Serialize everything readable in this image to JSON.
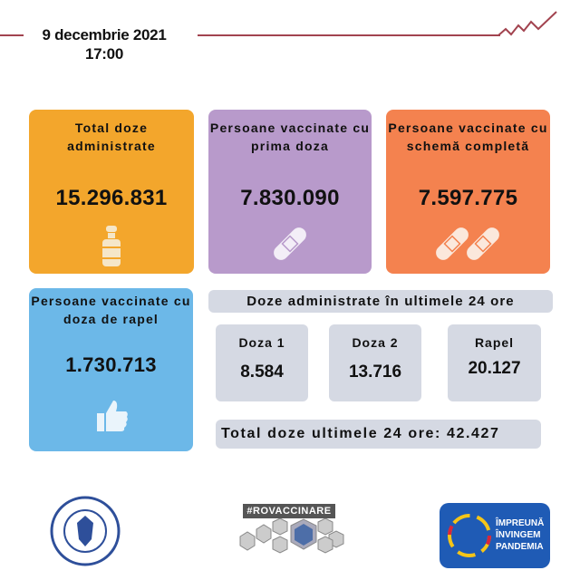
{
  "header": {
    "date": "9 decembrie 2021",
    "time": "17:00"
  },
  "colors": {
    "orange": "#f3a62c",
    "purple": "#b89acb",
    "coral": "#f4824f",
    "blue": "#6cb8e8",
    "grey": "#d5d9e3",
    "line": "#a2434f"
  },
  "cards": [
    {
      "title": "Total doze administrate",
      "value": "15.296.831",
      "icon": "vial-icon"
    },
    {
      "title": "Persoane vaccinate cu prima doza",
      "value": "7.830.090",
      "icon": "bandage-icon"
    },
    {
      "title": "Persoane vaccinate cu schemă completă",
      "value": "7.597.775",
      "icon": "two-bandages-icon"
    },
    {
      "title": "Persoane  vaccinate cu doza de rapel",
      "value": "1.730.713",
      "icon": "thumbs-up-icon"
    }
  ],
  "last24": {
    "title": "Doze administrate în ultimele 24 ore",
    "items": [
      {
        "label": "Doza 1",
        "value": "8.584"
      },
      {
        "label": "Doza 2",
        "value": "13.716"
      },
      {
        "label": "Rapel",
        "value": "20.127"
      }
    ],
    "total_label": "Total doze ultimele 24 ore:",
    "total_value": "42.427"
  },
  "logos": {
    "gov": "GUVERNUL ROMÂNIEI",
    "rovaccinare": "#ROVACCINARE",
    "cncav": "CNCAV",
    "cncav_text": [
      "ÎMPREUNĂ",
      "ÎNVINGEM",
      "PANDEMIA"
    ]
  }
}
